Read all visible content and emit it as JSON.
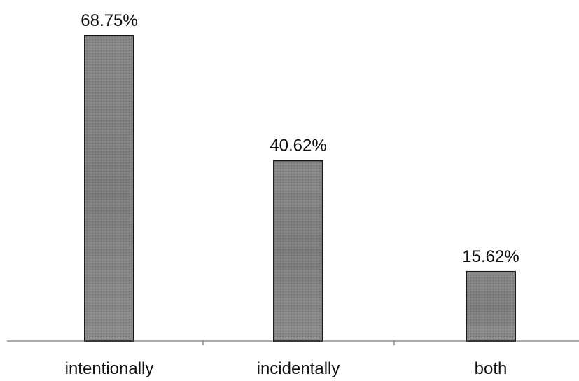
{
  "chart_data": {
    "type": "bar",
    "categories": [
      "intentionally",
      "incidentally",
      "both"
    ],
    "values": [
      68.75,
      40.62,
      15.62
    ],
    "value_labels": [
      "68.75%",
      "40.62%",
      "15.62%"
    ],
    "ylim": [
      0,
      70
    ],
    "grid": false,
    "legend": "none",
    "colors": {
      "bar_fill": "#8c8c8c",
      "bar_stroke": "#1a1a1a",
      "axis": "#555555",
      "text": "#111111"
    }
  }
}
